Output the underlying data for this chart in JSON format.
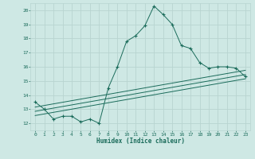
{
  "xlabel": "Humidex (Indice chaleur)",
  "bg_color": "#cee8e4",
  "grid_color": "#b8d4d0",
  "line_color": "#1a6b5a",
  "xlim": [
    -0.5,
    23.5
  ],
  "ylim": [
    11.5,
    20.5
  ],
  "xticks": [
    0,
    1,
    2,
    3,
    4,
    5,
    6,
    7,
    8,
    9,
    10,
    11,
    12,
    13,
    14,
    15,
    16,
    17,
    18,
    19,
    20,
    21,
    22,
    23
  ],
  "yticks": [
    12,
    13,
    14,
    15,
    16,
    17,
    18,
    19,
    20
  ],
  "main_x": [
    0,
    1,
    2,
    3,
    4,
    5,
    6,
    7,
    8,
    9,
    10,
    11,
    12,
    13,
    14,
    15,
    16,
    17,
    18,
    19,
    20,
    21,
    22,
    23
  ],
  "main_y": [
    13.5,
    13.0,
    12.3,
    12.5,
    12.5,
    12.1,
    12.3,
    12.0,
    14.5,
    16.0,
    17.8,
    18.2,
    18.9,
    20.3,
    19.7,
    19.0,
    17.5,
    17.3,
    16.3,
    15.9,
    16.0,
    16.0,
    15.9,
    15.3
  ],
  "line2_x": [
    0,
    23
  ],
  "line2_y": [
    12.55,
    15.15
  ],
  "line3_x": [
    0,
    23
  ],
  "line3_y": [
    12.85,
    15.45
  ],
  "line4_x": [
    0,
    23
  ],
  "line4_y": [
    13.15,
    15.75
  ]
}
